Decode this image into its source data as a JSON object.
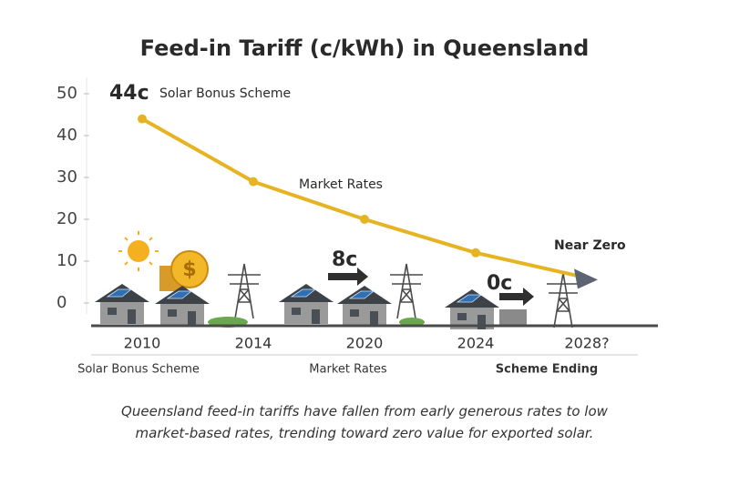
{
  "chart_data": {
    "type": "line",
    "title": "Feed-in Tariff (c/kWh) in Queensland",
    "categories": [
      "2010",
      "2014",
      "2020",
      "2024",
      "2028?"
    ],
    "series": [
      {
        "name": "Feed-in Tariff",
        "color": "#e6b422",
        "values": [
          44,
          29,
          20,
          12,
          6
        ]
      }
    ],
    "ylim": [
      0,
      50
    ],
    "yticks": [
      0,
      10,
      20,
      30,
      40,
      50
    ],
    "annotations": [
      "44c",
      "Solar Bonus Scheme",
      "Market Rates",
      "8c",
      "0c",
      "Near Zero"
    ],
    "groups": [
      "Solar Bonus Scheme",
      "Market Rates",
      "Scheme Ending"
    ]
  },
  "caption": "Queensland feed-in tariffs have fallen from early generous rates to low market-based rates, trending toward zero value for exported solar."
}
